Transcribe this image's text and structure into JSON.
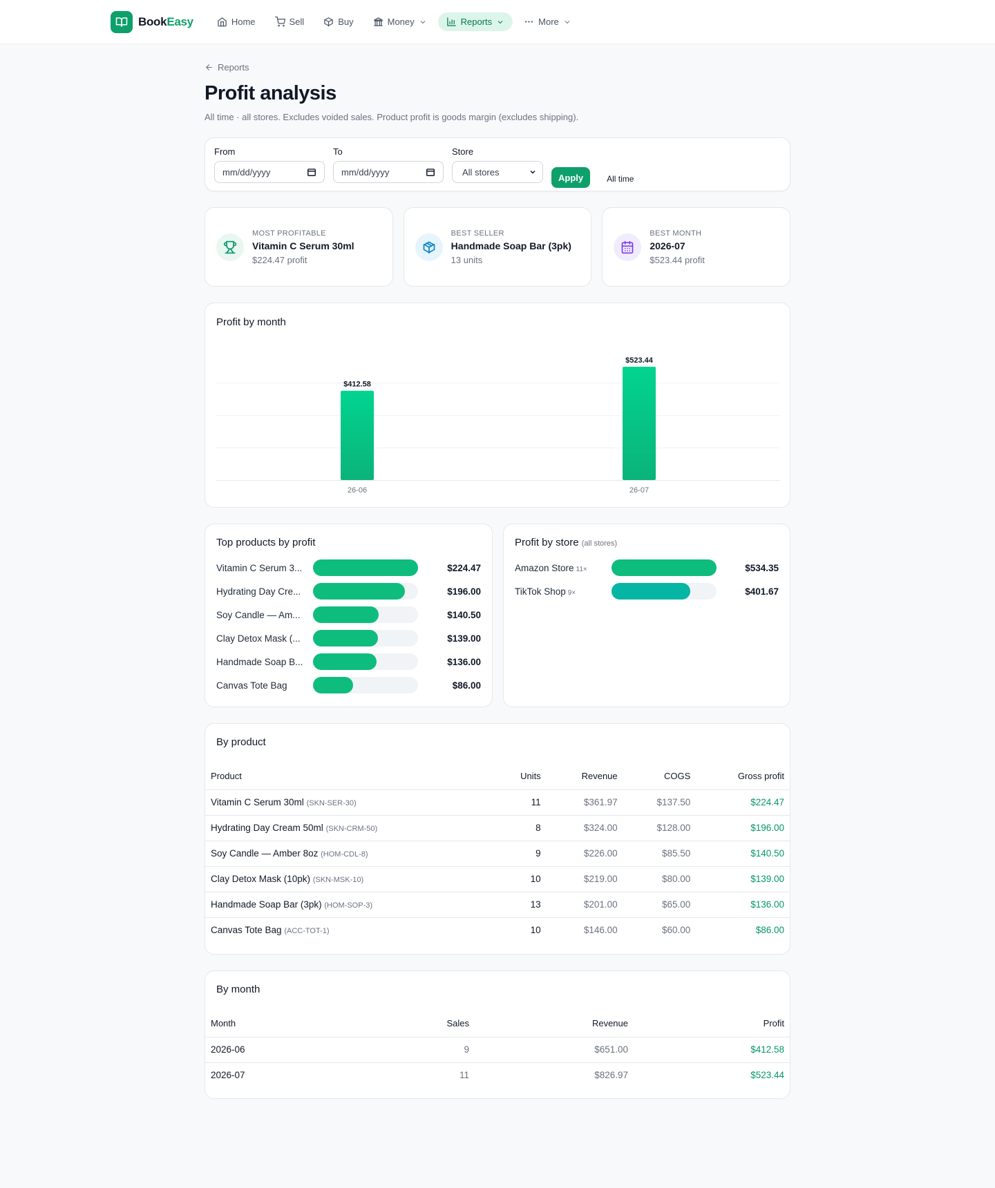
{
  "nav": {
    "brand_part1": "Book",
    "brand_part2": "Easy",
    "items": [
      {
        "label": "Home",
        "icon": "home-icon"
      },
      {
        "label": "Sell",
        "icon": "cart-icon"
      },
      {
        "label": "Buy",
        "icon": "box-icon"
      },
      {
        "label": "Money",
        "icon": "bank-icon"
      },
      {
        "label": "Reports",
        "icon": "bar-chart-icon"
      },
      {
        "label": "More",
        "icon": "dots-icon"
      }
    ]
  },
  "page": {
    "back_label": "Reports",
    "title": "Profit analysis",
    "subtitle": "All time · all stores. Excludes voided sales. Product profit is goods margin (excludes shipping)."
  },
  "filter": {
    "from_label": "From",
    "from_placeholder": "mm/dd/yyyy",
    "to_label": "To",
    "to_placeholder": "mm/dd/yyyy",
    "store_label": "Store",
    "store_value": "All stores",
    "apply_label": "Apply",
    "alltime_label": "All time"
  },
  "stats": [
    {
      "label": "MOST PROFITABLE",
      "value": "Vitamin C Serum 30ml",
      "sub": "$224.47 profit",
      "icon": "trophy-icon",
      "color": "#059669",
      "bg": "#e8f7f0"
    },
    {
      "label": "BEST SELLER",
      "value": "Handmade Soap Bar (3pk)",
      "sub": "13 units",
      "icon": "package-icon",
      "color": "#0284c7",
      "bg": "#e6f4fb"
    },
    {
      "label": "BEST MONTH",
      "value": "2026-07",
      "sub": "$523.44 profit",
      "icon": "calendar-icon",
      "color": "#7c3aed",
      "bg": "#f1ecfd"
    }
  ],
  "chart_title": "Profit by month",
  "chart_data": {
    "type": "bar",
    "categories": [
      "26-06",
      "26-07"
    ],
    "values": [
      412.58,
      523.44
    ],
    "value_labels": [
      "$412.58",
      "$523.44"
    ],
    "ylim": [
      0,
      600
    ],
    "grid": true,
    "color": "#0ebd7e"
  },
  "top_products": {
    "title": "Top products by profit",
    "items": [
      {
        "name": "Vitamin C Serum 3...",
        "value": "$224.47",
        "amount": 224.47
      },
      {
        "name": "Hydrating Day Cre...",
        "value": "$196.00",
        "amount": 196.0
      },
      {
        "name": "Soy Candle — Am...",
        "value": "$140.50",
        "amount": 140.5
      },
      {
        "name": "Clay Detox Mask (...",
        "value": "$139.00",
        "amount": 139.0
      },
      {
        "name": "Handmade Soap B...",
        "value": "$136.00",
        "amount": 136.0
      },
      {
        "name": "Canvas Tote Bag",
        "value": "$86.00",
        "amount": 86.0
      }
    ]
  },
  "stores": {
    "title": "Profit by store",
    "title_small": "(all stores)",
    "items": [
      {
        "name": "Amazon Store",
        "count": "11×",
        "value": "$534.35",
        "amount": 534.35,
        "color": "#0ebd7e"
      },
      {
        "name": "TikTok Shop",
        "count": "9×",
        "value": "$401.67",
        "amount": 401.67,
        "color": "#06b6a4"
      }
    ]
  },
  "by_product": {
    "title": "By product",
    "headers": [
      "Product",
      "Units",
      "Revenue",
      "COGS",
      "Gross profit"
    ],
    "rows": [
      {
        "name": "Vitamin C Serum 30ml",
        "sku": "(SKN-SER-30)",
        "units": "11",
        "revenue": "$361.97",
        "cogs": "$137.50",
        "profit": "$224.47"
      },
      {
        "name": "Hydrating Day Cream 50ml",
        "sku": "(SKN-CRM-50)",
        "units": "8",
        "revenue": "$324.00",
        "cogs": "$128.00",
        "profit": "$196.00"
      },
      {
        "name": "Soy Candle — Amber 8oz",
        "sku": "(HOM-CDL-8)",
        "units": "9",
        "revenue": "$226.00",
        "cogs": "$85.50",
        "profit": "$140.50"
      },
      {
        "name": "Clay Detox Mask (10pk)",
        "sku": "(SKN-MSK-10)",
        "units": "10",
        "revenue": "$219.00",
        "cogs": "$80.00",
        "profit": "$139.00"
      },
      {
        "name": "Handmade Soap Bar (3pk)",
        "sku": "(HOM-SOP-3)",
        "units": "13",
        "revenue": "$201.00",
        "cogs": "$65.00",
        "profit": "$136.00"
      },
      {
        "name": "Canvas Tote Bag",
        "sku": "(ACC-TOT-1)",
        "units": "10",
        "revenue": "$146.00",
        "cogs": "$60.00",
        "profit": "$86.00"
      }
    ]
  },
  "by_month": {
    "title": "By month",
    "headers": [
      "Month",
      "Sales",
      "Revenue",
      "Profit"
    ],
    "rows": [
      {
        "month": "2026-06",
        "sales": "9",
        "revenue": "$651.00",
        "profit": "$412.58"
      },
      {
        "month": "2026-07",
        "sales": "11",
        "revenue": "$826.97",
        "profit": "$523.44"
      }
    ]
  }
}
